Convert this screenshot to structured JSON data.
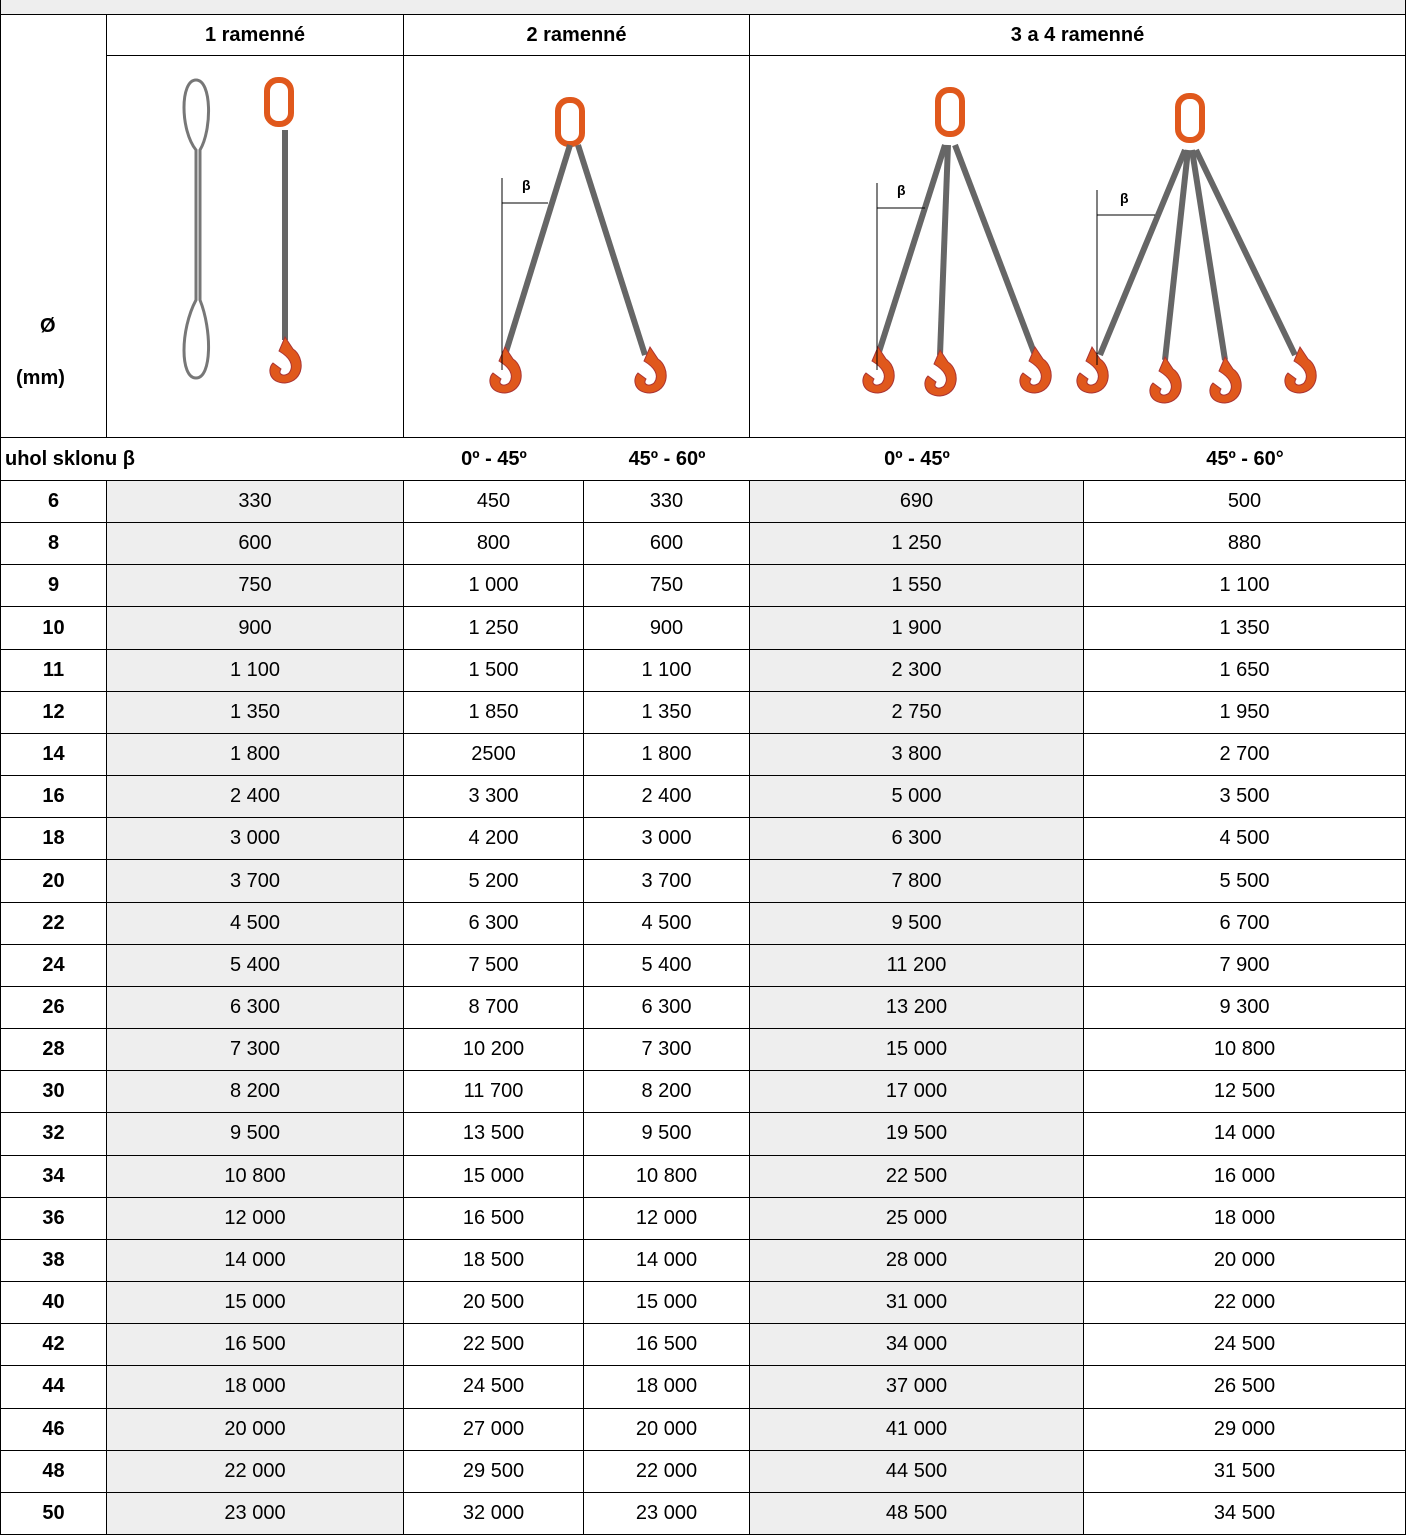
{
  "table": {
    "header": {
      "groups": [
        "1 ramenné",
        "2 ramenné",
        "3 a 4 ramenné"
      ],
      "diameter": "Ø",
      "unit": "(mm)",
      "angle_label": "uhol sklonu β",
      "angles": [
        "0º  -  45º",
        "45º  -  60º",
        "0º  -  45º",
        "45º  -  60°"
      ]
    },
    "rows": [
      [
        "6",
        "330",
        "450",
        "330",
        "690",
        "500"
      ],
      [
        "8",
        "600",
        "800",
        "600",
        "1 250",
        "880"
      ],
      [
        "9",
        "750",
        "1 000",
        "750",
        "1 550",
        "1 100"
      ],
      [
        "10",
        "900",
        "1 250",
        "900",
        "1 900",
        "1 350"
      ],
      [
        "11",
        "1 100",
        "1 500",
        "1 100",
        "2 300",
        "1 650"
      ],
      [
        "12",
        "1 350",
        "1 850",
        "1 350",
        "2 750",
        "1 950"
      ],
      [
        "14",
        "1 800",
        "2500",
        "1 800",
        "3 800",
        "2 700"
      ],
      [
        "16",
        "2 400",
        "3 300",
        "2 400",
        "5 000",
        "3 500"
      ],
      [
        "18",
        "3 000",
        "4 200",
        "3 000",
        "6 300",
        "4 500"
      ],
      [
        "20",
        "3 700",
        "5 200",
        "3 700",
        "7 800",
        "5 500"
      ],
      [
        "22",
        "4 500",
        "6 300",
        "4 500",
        "9 500",
        "6 700"
      ],
      [
        "24",
        "5 400",
        "7 500",
        "5 400",
        "11 200",
        "7 900"
      ],
      [
        "26",
        "6 300",
        "8 700",
        "6 300",
        "13 200",
        "9 300"
      ],
      [
        "28",
        "7 300",
        "10 200",
        "7 300",
        "15 000",
        "10 800"
      ],
      [
        "30",
        "8 200",
        "11 700",
        "8 200",
        "17 000",
        "12 500"
      ],
      [
        "32",
        "9 500",
        "13 500",
        "9 500",
        "19 500",
        "14 000"
      ],
      [
        "34",
        "10 800",
        "15 000",
        "10 800",
        "22 500",
        "16 000"
      ],
      [
        "36",
        "12 000",
        "16 500",
        "12 000",
        "25 000",
        "18 000"
      ],
      [
        "38",
        "14 000",
        "18 500",
        "14 000",
        "28 000",
        "20 000"
      ],
      [
        "40",
        "15 000",
        "20 500",
        "15 000",
        "31 000",
        "22 000"
      ],
      [
        "42",
        "16 500",
        "22 500",
        "16 500",
        "34 000",
        "24 500"
      ],
      [
        "44",
        "18 000",
        "24 500",
        "18 000",
        "37 000",
        "26 500"
      ],
      [
        "46",
        "20 000",
        "27 000",
        "20 000",
        "41 000",
        "29 000"
      ],
      [
        "48",
        "22 000",
        "29 500",
        "22 000",
        "44 500",
        "31 500"
      ],
      [
        "50",
        "23 000",
        "32 000",
        "23 000",
        "48 500",
        "34 500"
      ]
    ]
  }
}
